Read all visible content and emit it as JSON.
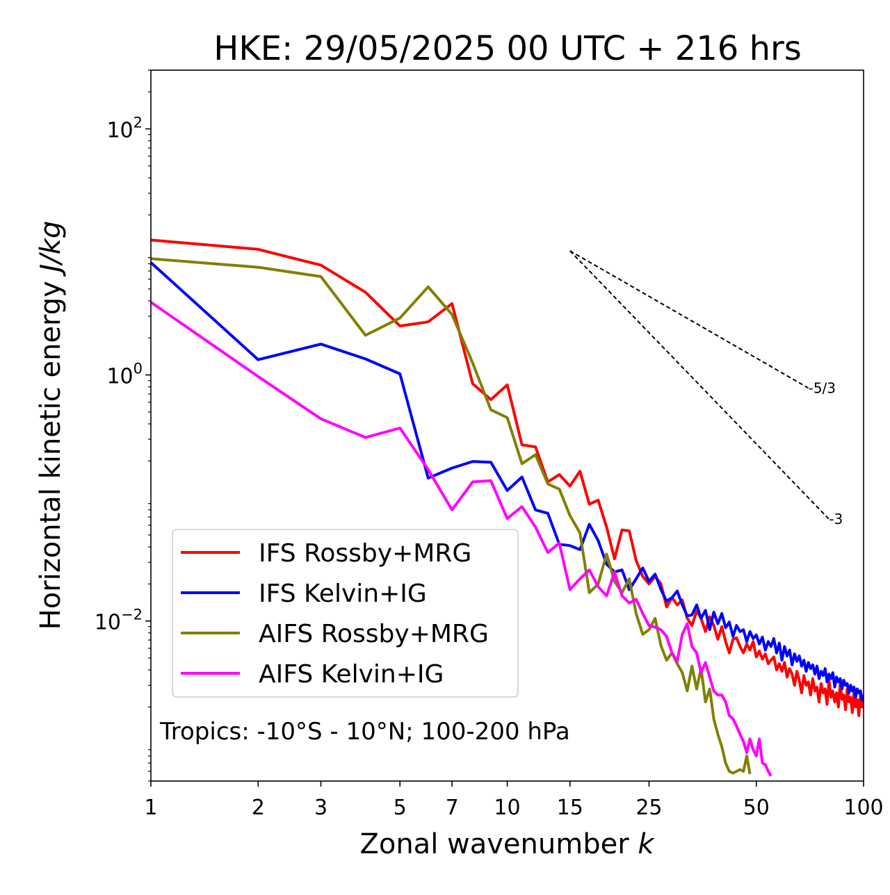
{
  "chart_data": {
    "type": "line",
    "title": "HKE: 29/05/2025 00 UTC + 216 hrs",
    "xlabel": "Zonal wavenumber",
    "xlabel_var": "k",
    "ylabel": "Horizontal kinetic energy",
    "ylabel_unit": "J/kg",
    "xscale": "log",
    "yscale": "log",
    "xlim": [
      1,
      100
    ],
    "ylim": [
      0.0005,
      300
    ],
    "x_ticks": [
      1,
      2,
      3,
      5,
      7,
      10,
      15,
      25,
      50,
      100
    ],
    "x_tick_labels": [
      "1",
      "2",
      "3",
      "5",
      "7",
      "10",
      "15",
      "25",
      "50",
      "100"
    ],
    "y_ticks": [
      {
        "value": 100,
        "base": "10",
        "exp": "2"
      },
      {
        "value": 1,
        "base": "10",
        "exp": "0"
      },
      {
        "value": 0.01,
        "base": "10",
        "exp": "−2"
      }
    ],
    "grid": false,
    "legend_position": "lower-left",
    "annotation": "Tropics: -10°S - 10°N; 100-200 hPa",
    "reference_slopes": [
      {
        "label": "-5/3",
        "slope": -1.6667,
        "x_start": 15,
        "x_end": 70,
        "y_start": 10.2
      },
      {
        "label": "-3",
        "slope": -3,
        "x_start": 15,
        "x_end": 80,
        "y_start": 10.2
      }
    ],
    "series": [
      {
        "name": "IFS Rossby+MRG",
        "color": "#ff0000",
        "x": [
          1,
          2,
          3,
          4,
          5,
          6,
          7,
          8,
          9,
          10,
          11,
          12,
          13,
          14,
          15,
          16,
          17,
          18,
          19,
          20,
          21,
          22,
          23,
          24,
          25,
          26,
          27,
          28,
          29,
          30,
          31,
          32,
          33,
          34,
          35,
          36,
          37,
          38,
          39,
          40,
          41,
          42,
          43,
          44,
          45,
          46,
          47,
          48,
          49,
          50,
          51,
          52,
          53,
          54,
          55,
          56,
          57,
          58,
          59,
          60,
          61,
          62,
          63,
          64,
          65,
          66,
          67,
          68,
          69,
          70,
          71,
          72,
          73,
          74,
          75,
          76,
          77,
          78,
          79,
          80,
          81,
          82,
          83,
          84,
          85,
          86,
          87,
          88,
          89,
          90,
          91,
          92,
          93,
          94,
          95,
          96,
          97,
          98,
          99,
          100
        ],
        "y": [
          12.5,
          10.5,
          7.8,
          4.7,
          2.5,
          2.7,
          3.8,
          0.85,
          0.63,
          0.83,
          0.27,
          0.26,
          0.135,
          0.155,
          0.125,
          0.165,
          0.089,
          0.096,
          0.058,
          0.032,
          0.055,
          0.054,
          0.031,
          0.023,
          0.02,
          0.023,
          0.02,
          0.013,
          0.0155,
          0.0135,
          0.0148,
          0.0105,
          0.0092,
          0.012,
          0.0105,
          0.0082,
          0.0108,
          0.0092,
          0.0071,
          0.009,
          0.0068,
          0.0055,
          0.0071,
          0.0073,
          0.0062,
          0.0055,
          0.0065,
          0.0058,
          0.0068,
          0.0051,
          0.0057,
          0.0049,
          0.0054,
          0.0045,
          0.0048,
          0.0051,
          0.004,
          0.0045,
          0.0039,
          0.0046,
          0.0035,
          0.0041,
          0.0037,
          0.003,
          0.0039,
          0.0033,
          0.0026,
          0.0036,
          0.003,
          0.0032,
          0.0025,
          0.0034,
          0.0027,
          0.0029,
          0.0022,
          0.0031,
          0.0026,
          0.0028,
          0.0021,
          0.0033,
          0.0024,
          0.0027,
          0.0022,
          0.0026,
          0.002,
          0.0031,
          0.0023,
          0.0025,
          0.0019,
          0.0028,
          0.0022,
          0.0024,
          0.0018,
          0.0026,
          0.002,
          0.0023,
          0.0017,
          0.0025,
          0.002,
          0.0023
        ]
      },
      {
        "name": "IFS Kelvin+IG",
        "color": "#0000ff",
        "x": [
          1,
          2,
          3,
          4,
          5,
          6,
          7,
          8,
          9,
          10,
          11,
          12,
          13,
          14,
          15,
          16,
          17,
          18,
          19,
          20,
          21,
          22,
          23,
          24,
          25,
          26,
          27,
          28,
          29,
          30,
          31,
          32,
          33,
          34,
          35,
          36,
          37,
          38,
          39,
          40,
          41,
          42,
          43,
          44,
          45,
          46,
          47,
          48,
          49,
          50,
          51,
          52,
          53,
          54,
          55,
          56,
          57,
          58,
          59,
          60,
          61,
          62,
          63,
          64,
          65,
          66,
          67,
          68,
          69,
          70,
          71,
          72,
          73,
          74,
          75,
          76,
          77,
          78,
          79,
          80,
          81,
          82,
          83,
          84,
          85,
          86,
          87,
          88,
          89,
          90,
          91,
          92,
          93,
          94,
          95,
          96,
          97,
          98,
          99,
          100
        ],
        "y": [
          8.2,
          1.33,
          1.78,
          1.35,
          1.02,
          0.145,
          0.175,
          0.198,
          0.195,
          0.115,
          0.148,
          0.08,
          0.075,
          0.042,
          0.041,
          0.038,
          0.061,
          0.045,
          0.029,
          0.025,
          0.026,
          0.018,
          0.022,
          0.027,
          0.021,
          0.024,
          0.018,
          0.0145,
          0.0155,
          0.0175,
          0.0135,
          0.011,
          0.0112,
          0.0135,
          0.0105,
          0.0122,
          0.0085,
          0.0118,
          0.0095,
          0.0115,
          0.0088,
          0.0098,
          0.0075,
          0.0092,
          0.0082,
          0.0085,
          0.0068,
          0.0082,
          0.0072,
          0.0077,
          0.0065,
          0.0074,
          0.0058,
          0.0068,
          0.0062,
          0.0072,
          0.0055,
          0.0066,
          0.0048,
          0.0062,
          0.0052,
          0.0058,
          0.0044,
          0.0054,
          0.0047,
          0.0052,
          0.0043,
          0.0048,
          0.0039,
          0.0046,
          0.0041,
          0.0044,
          0.0037,
          0.0043,
          0.0034,
          0.0039,
          0.0036,
          0.0041,
          0.0032,
          0.0037,
          0.0034,
          0.0038,
          0.0029,
          0.0035,
          0.0032,
          0.0034,
          0.0028,
          0.0033,
          0.003,
          0.0031,
          0.0026,
          0.003,
          0.0027,
          0.0029,
          0.0024,
          0.0028,
          0.0026,
          0.0027,
          0.0023,
          0.0025
        ]
      },
      {
        "name": "AIFS Rossby+MRG",
        "color": "#808000",
        "x": [
          1,
          2,
          3,
          4,
          5,
          6,
          7,
          8,
          9,
          10,
          11,
          12,
          13,
          14,
          15,
          16,
          17,
          18,
          19,
          20,
          21,
          22,
          23,
          24,
          25,
          26,
          27,
          28,
          29,
          30,
          31,
          32,
          33,
          34,
          35,
          36,
          37,
          38,
          39,
          40,
          41,
          42,
          43,
          44,
          45,
          46,
          47,
          48
        ],
        "y": [
          8.8,
          7.5,
          6.3,
          2.1,
          2.9,
          5.2,
          3.1,
          1.25,
          0.52,
          0.45,
          0.19,
          0.225,
          0.13,
          0.118,
          0.072,
          0.052,
          0.017,
          0.02,
          0.035,
          0.021,
          0.017,
          0.022,
          0.0115,
          0.0078,
          0.0085,
          0.0105,
          0.0063,
          0.0048,
          0.0055,
          0.0045,
          0.0038,
          0.0027,
          0.0043,
          0.0028,
          0.0041,
          0.0022,
          0.0028,
          0.0016,
          0.0012,
          0.00095,
          0.0007,
          0.0006,
          0.00058,
          0.0006,
          0.00062,
          0.0006,
          0.0008,
          0.00057
        ]
      },
      {
        "name": "AIFS Kelvin+IG",
        "color": "#ff00ff",
        "x": [
          1,
          2,
          3,
          4,
          5,
          6,
          7,
          8,
          9,
          10,
          11,
          12,
          13,
          14,
          15,
          16,
          17,
          18,
          19,
          20,
          21,
          22,
          23,
          24,
          25,
          26,
          27,
          28,
          29,
          30,
          31,
          32,
          33,
          34,
          35,
          36,
          37,
          38,
          39,
          40,
          41,
          42,
          43,
          44,
          45,
          46,
          47,
          48,
          49,
          50,
          51,
          52,
          53,
          54,
          55
        ],
        "y": [
          3.9,
          0.97,
          0.44,
          0.31,
          0.37,
          0.17,
          0.08,
          0.135,
          0.138,
          0.068,
          0.085,
          0.058,
          0.036,
          0.043,
          0.018,
          0.022,
          0.026,
          0.019,
          0.016,
          0.025,
          0.016,
          0.014,
          0.015,
          0.0115,
          0.0092,
          0.0089,
          0.0085,
          0.0075,
          0.0055,
          0.0047,
          0.0078,
          0.0095,
          0.0062,
          0.0055,
          0.0038,
          0.0046,
          0.0035,
          0.0027,
          0.0025,
          0.0025,
          0.0022,
          0.0017,
          0.0016,
          0.0014,
          0.0012,
          0.00105,
          0.00085,
          0.0011,
          0.0009,
          0.0008,
          0.0011,
          0.0007,
          0.00068,
          0.0006,
          0.00055
        ]
      }
    ]
  }
}
